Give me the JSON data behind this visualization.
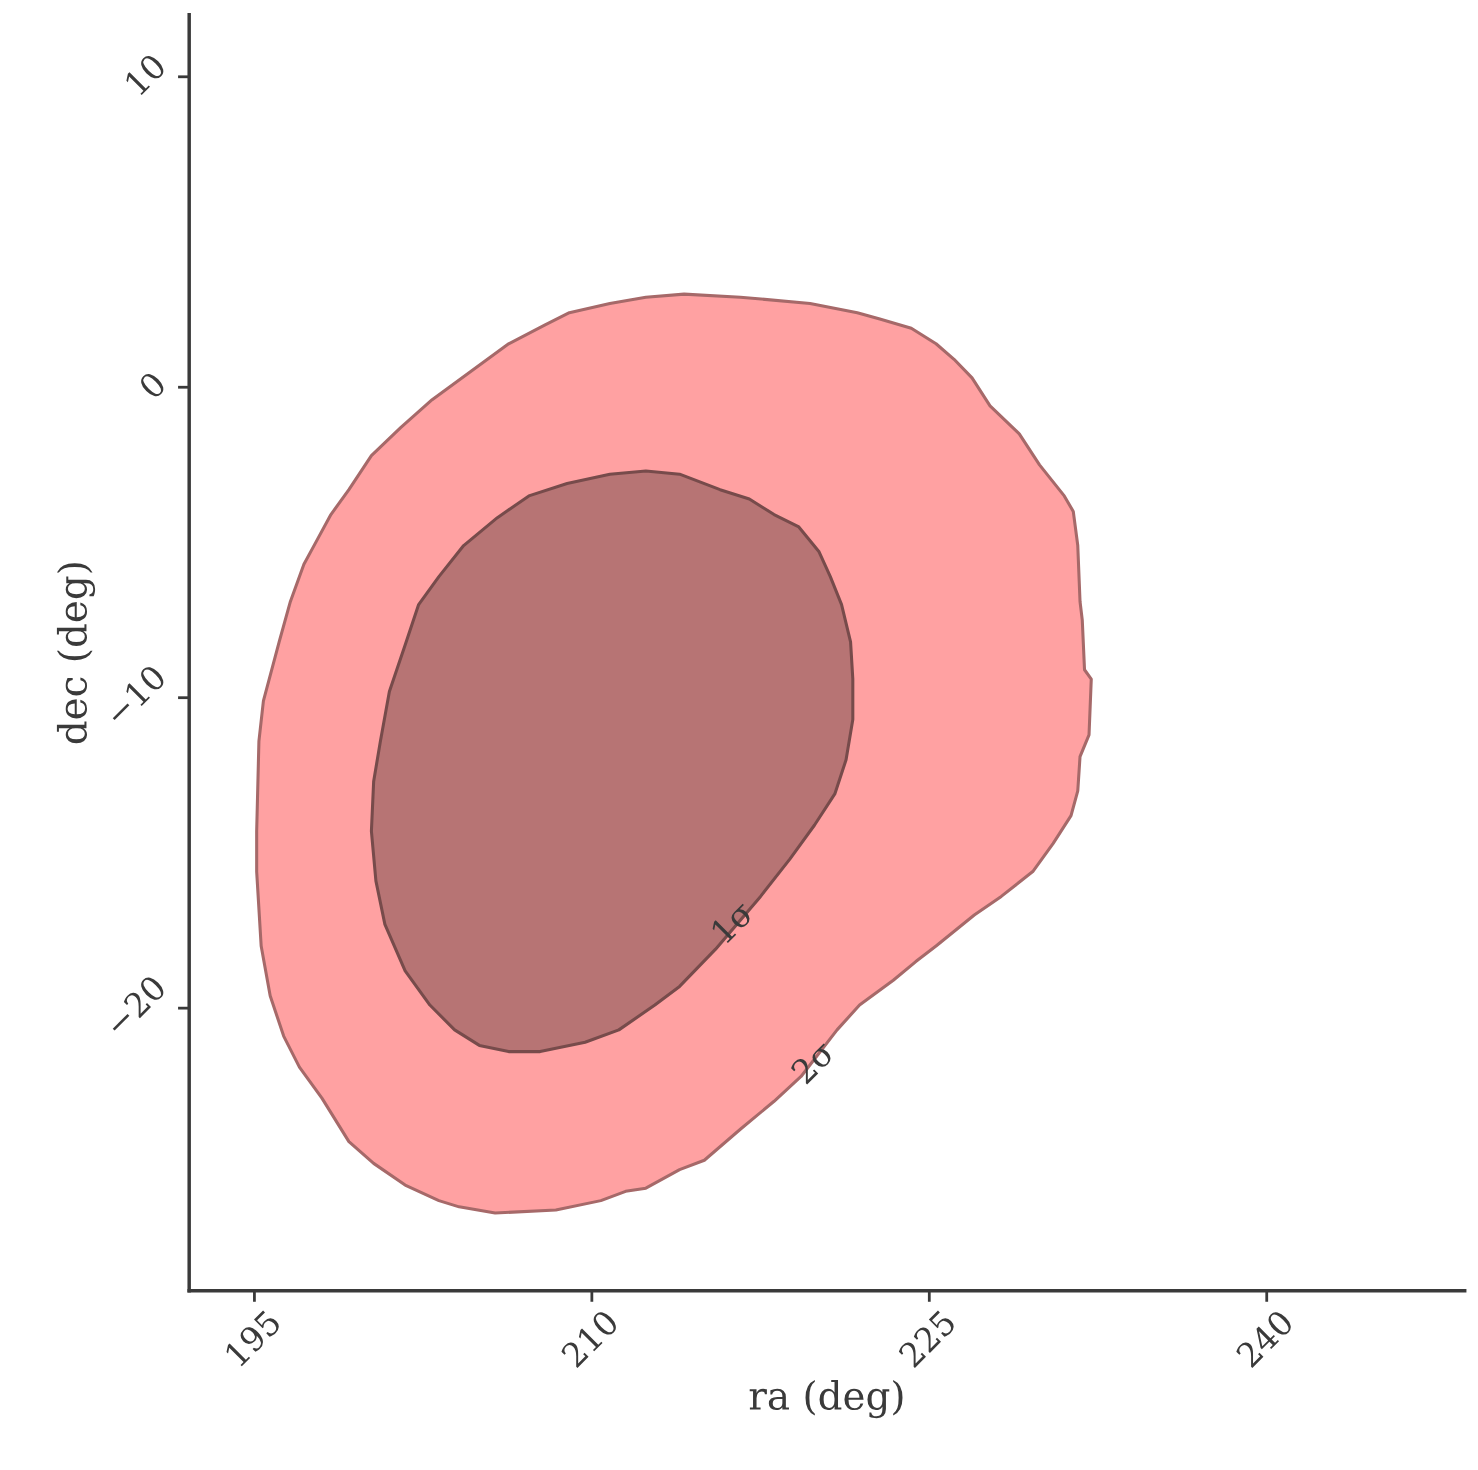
{
  "chart_data": {
    "type": "area",
    "xlabel": "ra (deg)",
    "ylabel": "dec (deg)",
    "xlim": [
      192.1,
      248.8
    ],
    "ylim": [
      -29.1,
      12.0
    ],
    "xticks": [
      195,
      210,
      225,
      240
    ],
    "yticks": [
      {
        "value": -20,
        "label": "−20"
      },
      {
        "value": -10,
        "label": "−10"
      },
      0,
      10
    ],
    "grid": false,
    "series": [
      {
        "color": "#ffa1a2",
        "x": [
          212.4,
          214.1,
          216.6,
          219.7,
          221.8,
          222.8,
          224.2,
          225.3,
          226.1,
          226.9,
          227.7,
          229.0,
          229.9,
          231.0,
          231.4,
          231.6,
          231.7,
          231.8,
          231.9,
          232.2,
          232.1,
          231.7,
          231.6,
          231.3,
          230.5,
          229.6,
          228.2,
          227.0,
          225.3,
          224.4,
          223.4,
          221.9,
          220.9,
          219.3,
          218.1,
          216.6,
          215.0,
          213.9,
          212.4,
          211.5,
          210.4,
          208.4,
          205.7,
          204.1,
          203.2,
          201.7,
          200.3,
          199.2,
          198.0,
          197.0,
          196.3,
          195.7,
          195.3,
          195.1,
          195.1,
          195.2,
          195.4,
          196.1,
          196.6,
          197.2,
          197.8,
          198.4,
          199.2,
          200.2,
          201.5,
          202.9,
          204.6,
          206.3,
          207.9,
          209.0,
          210.8
        ],
        "values": [
          2.9,
          3.0,
          2.9,
          2.7,
          2.4,
          2.2,
          1.9,
          1.4,
          0.9,
          0.3,
          -0.6,
          -1.5,
          -2.5,
          -3.5,
          -4.0,
          -5.1,
          -6.9,
          -7.5,
          -9.1,
          -9.4,
          -11.2,
          -11.9,
          -13.0,
          -13.8,
          -14.7,
          -15.6,
          -16.4,
          -17.0,
          -18.0,
          -18.5,
          -19.1,
          -19.9,
          -20.7,
          -22.2,
          -23.0,
          -23.9,
          -24.9,
          -25.2,
          -25.8,
          -25.9,
          -26.2,
          -26.5,
          -26.6,
          -26.4,
          -26.2,
          -25.7,
          -25.0,
          -24.3,
          -22.9,
          -21.9,
          -20.9,
          -19.6,
          -18.0,
          -15.6,
          -14.3,
          -11.4,
          -10.1,
          -8.2,
          -6.9,
          -5.7,
          -4.9,
          -4.1,
          -3.3,
          -2.2,
          -1.3,
          -0.4,
          0.5,
          1.4,
          2.0,
          2.4,
          2.7
        ]
      },
      {
        "color": "#b77474",
        "x": [
          212.4,
          213.9,
          215.7,
          217.0,
          218.1,
          219.2,
          220.1,
          220.6,
          221.1,
          221.5,
          221.6,
          221.6,
          221.3,
          220.8,
          219.9,
          218.8,
          217.5,
          215.5,
          213.9,
          212.8,
          211.2,
          209.7,
          207.7,
          206.3,
          205.0,
          203.9,
          202.8,
          201.7,
          200.8,
          200.4,
          200.2,
          200.3,
          200.6,
          201.0,
          201.7,
          202.3,
          203.2,
          204.3,
          205.8,
          207.2,
          208.9,
          210.8
        ],
        "values": [
          -2.7,
          -2.8,
          -3.3,
          -3.6,
          -4.1,
          -4.5,
          -5.3,
          -6.1,
          -7.0,
          -8.2,
          -9.4,
          -10.7,
          -12.0,
          -13.1,
          -14.1,
          -15.2,
          -16.4,
          -18.1,
          -19.3,
          -19.9,
          -20.7,
          -21.1,
          -21.4,
          -21.4,
          -21.2,
          -20.7,
          -19.9,
          -18.8,
          -17.3,
          -15.9,
          -14.3,
          -12.7,
          -11.4,
          -9.8,
          -8.3,
          -7.0,
          -6.1,
          -5.1,
          -4.2,
          -3.5,
          -3.1,
          -2.8
        ]
      }
    ],
    "annotations": [
      {
        "text": "1σ",
        "x": 216.3,
        "y": -17.3
      },
      {
        "text": "2σ",
        "x": 219.9,
        "y": -21.8
      }
    ]
  }
}
